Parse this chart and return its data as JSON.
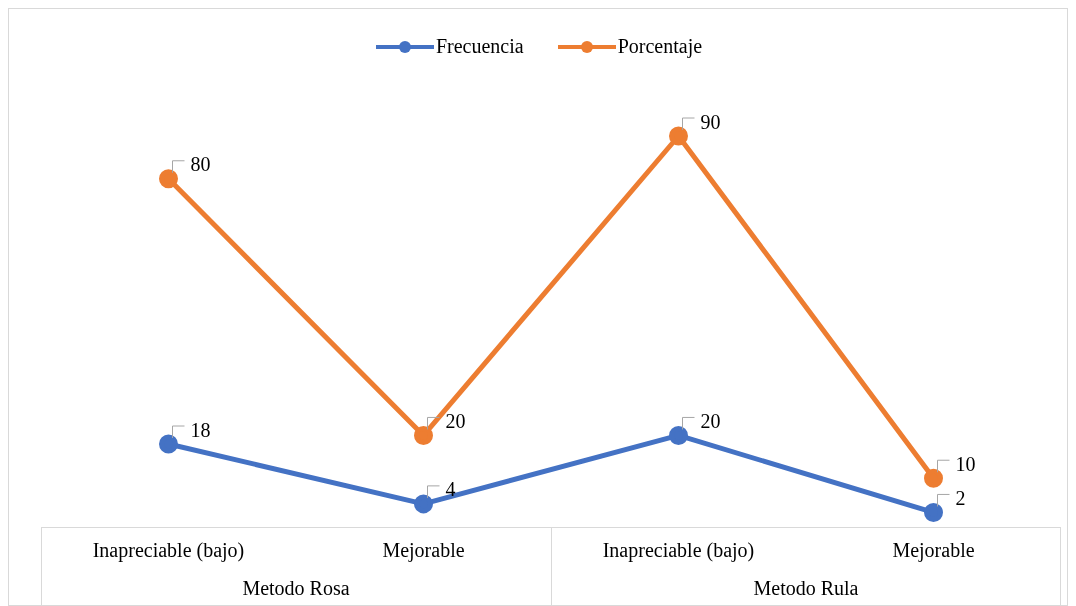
{
  "chart_data": {
    "type": "line",
    "categories": [
      "Inapreciable (bajo)",
      "Mejorable",
      "Inapreciable (bajo)",
      "Mejorable"
    ],
    "series": [
      {
        "name": "Frecuencia",
        "color": "#4472c4",
        "values": [
          18,
          4,
          20,
          2
        ]
      },
      {
        "name": "Porcentaje",
        "color": "#ed7d31",
        "values": [
          80,
          20,
          90,
          10
        ]
      }
    ],
    "annotations": [
      "Metodo Rosa",
      "Metodo Rula"
    ],
    "data_labels": true,
    "legend": "top",
    "marker": "circle",
    "line_style": "solid",
    "grid": false
  }
}
